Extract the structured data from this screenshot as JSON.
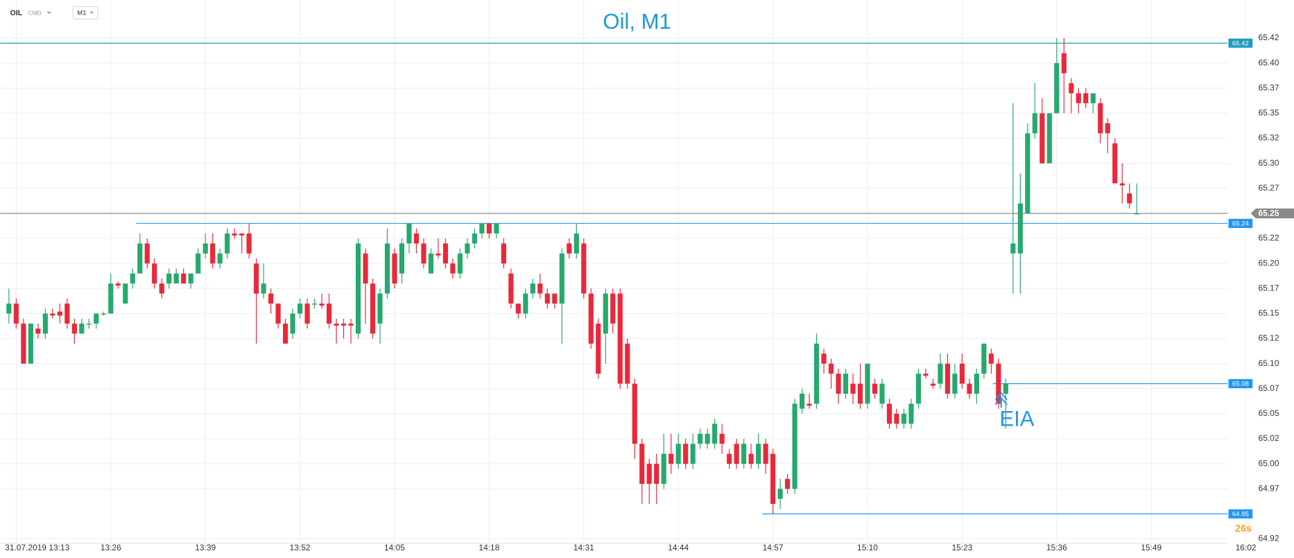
{
  "toolbar": {
    "symbol": "OIL",
    "market": "CMD",
    "interval": "M1"
  },
  "chart_data": {
    "type": "candlestick",
    "title": "Oil, M1",
    "annotation": "EIA",
    "countdown": "26s",
    "up_color": "#26a96c",
    "down_color": "#e8293b",
    "grid": true,
    "xlim": [
      "13:11",
      "16:02"
    ],
    "xticks": [
      "31.07.2019 13:13",
      "13:26",
      "13:39",
      "13:52",
      "14:05",
      "14:18",
      "14:31",
      "14:44",
      "14:57",
      "15:10",
      "15:23",
      "15:36",
      "15:49",
      "16:02"
    ],
    "ylim": [
      64.925,
      65.425
    ],
    "yticks": [
      {
        "value": 65.425,
        "label": "65.42"
      },
      {
        "value": 65.4,
        "label": "65.40"
      },
      {
        "value": 65.375,
        "label": "65.37"
      },
      {
        "value": 65.35,
        "label": "65.35"
      },
      {
        "value": 65.325,
        "label": "65.32"
      },
      {
        "value": 65.3,
        "label": "65.30"
      },
      {
        "value": 65.275,
        "label": "65.27"
      },
      {
        "value": 65.225,
        "label": "65.22"
      },
      {
        "value": 65.2,
        "label": "65.20"
      },
      {
        "value": 65.175,
        "label": "65.17"
      },
      {
        "value": 65.15,
        "label": "65.15"
      },
      {
        "value": 65.125,
        "label": "65.12"
      },
      {
        "value": 65.1,
        "label": "65.10"
      },
      {
        "value": 65.075,
        "label": "65.07"
      },
      {
        "value": 65.05,
        "label": "65.05"
      },
      {
        "value": 65.025,
        "label": "65.02"
      },
      {
        "value": 65,
        "label": "65.00"
      },
      {
        "value": 64.975,
        "label": "64.97"
      },
      {
        "value": 64.925,
        "label": "64.92"
      }
    ],
    "levels": [
      {
        "value": 65.42,
        "color": "#1f9bbd"
      },
      {
        "value": 65.24,
        "color": "#2196f3"
      },
      {
        "value": 65.08,
        "color": "#2196f3"
      },
      {
        "value": 64.95,
        "color": "#2196f3"
      }
    ],
    "current_price": {
      "value": 65.25,
      "color": "#8a8a8a"
    },
    "x": [
      "13:12",
      "13:13",
      "13:14",
      "13:15",
      "13:16",
      "13:17",
      "13:18",
      "13:19",
      "13:20",
      "13:21",
      "13:22",
      "13:23",
      "13:24",
      "13:25",
      "13:26",
      "13:27",
      "13:28",
      "13:29",
      "13:30",
      "13:31",
      "13:32",
      "13:33",
      "13:34",
      "13:35",
      "13:36",
      "13:37",
      "13:38",
      "13:39",
      "13:40",
      "13:41",
      "13:42",
      "13:43",
      "13:44",
      "13:45",
      "13:46",
      "13:47",
      "13:48",
      "13:49",
      "13:50",
      "13:51",
      "13:52",
      "13:53",
      "13:54",
      "13:55",
      "13:56",
      "13:57",
      "13:58",
      "13:59",
      "14:00",
      "14:01",
      "14:02",
      "14:03",
      "14:04",
      "14:05",
      "14:06",
      "14:07",
      "14:08",
      "14:09",
      "14:10",
      "14:11",
      "14:12",
      "14:13",
      "14:14",
      "14:15",
      "14:16",
      "14:17",
      "14:18",
      "14:19",
      "14:20",
      "14:21",
      "14:22",
      "14:23",
      "14:24",
      "14:25",
      "14:26",
      "14:27",
      "14:28",
      "14:29",
      "14:30",
      "14:31",
      "14:32",
      "14:33",
      "14:34",
      "14:35",
      "14:36",
      "14:37",
      "14:38",
      "14:39",
      "14:40",
      "14:41",
      "14:42",
      "14:43",
      "14:44",
      "14:45",
      "14:46",
      "14:47",
      "14:48",
      "14:49",
      "14:50",
      "14:51",
      "14:52",
      "14:53",
      "14:54",
      "14:55",
      "14:56",
      "14:57",
      "14:58",
      "14:59",
      "15:00",
      "15:01",
      "15:02",
      "15:03",
      "15:04",
      "15:05",
      "15:06",
      "15:07",
      "15:08",
      "15:09",
      "15:10",
      "15:11",
      "15:12",
      "15:13",
      "15:14",
      "15:15",
      "15:16",
      "15:17",
      "15:18",
      "15:19",
      "15:20",
      "15:21",
      "15:22",
      "15:23",
      "15:24",
      "15:25",
      "15:26",
      "15:27",
      "15:28",
      "15:29",
      "15:30",
      "15:31",
      "15:32",
      "15:33",
      "15:34",
      "15:35",
      "15:36",
      "15:37",
      "15:38",
      "15:39",
      "15:40",
      "15:41",
      "15:42",
      "15:43",
      "15:44",
      "15:45",
      "15:46",
      "15:47"
    ],
    "open": [
      65.15,
      65.16,
      65.14,
      65.1,
      65.135,
      65.13,
      65.15,
      65.152,
      65.16,
      65.14,
      65.13,
      65.14,
      65.14,
      65.15,
      65.15,
      65.18,
      65.16,
      65.18,
      65.19,
      65.22,
      65.2,
      65.18,
      65.18,
      65.18,
      65.19,
      65.18,
      65.19,
      65.21,
      65.22,
      65.2,
      65.21,
      65.23,
      65.23,
      65.23,
      65.2,
      65.17,
      65.17,
      65.16,
      65.14,
      65.13,
      65.15,
      65.16,
      65.16,
      65.16,
      65.16,
      65.14,
      65.14,
      65.14,
      65.13,
      65.21,
      65.18,
      65.14,
      65.17,
      65.21,
      65.19,
      65.22,
      65.23,
      65.22,
      65.19,
      65.21,
      65.22,
      65.2,
      65.19,
      65.21,
      65.22,
      65.23,
      65.24,
      65.23,
      65.22,
      65.19,
      65.16,
      65.15,
      65.17,
      65.18,
      65.17,
      65.17,
      65.16,
      65.22,
      65.21,
      65.22,
      65.17,
      65.14,
      65.13,
      65.17,
      65.17,
      65.12,
      65.08,
      65.02,
      65.0,
      65.0,
      64.98,
      65.01,
      65.0,
      65.02,
      65.0,
      65.02,
      65.02,
      65.02,
      65.03,
      65.01,
      65.02,
      65.0,
      65.01,
      65.0,
      65.02,
      65.01,
      64.965,
      64.985,
      64.975,
      65.055,
      65.06,
      65.06,
      65.11,
      65.1,
      65.09,
      65.07,
      65.08,
      65.08,
      65.06,
      65.08,
      65.06,
      65.06,
      65.05,
      65.04,
      65.04,
      65.06,
      65.09,
      65.08,
      65.08,
      65.1,
      65.07,
      65.1,
      65.08,
      65.07,
      65.09,
      65.11,
      65.1,
      65.07,
      65.21,
      65.21,
      65.25,
      65.33,
      65.35,
      65.3,
      65.35,
      65.41,
      65.38,
      65.37,
      65.37,
      65.36,
      65.36,
      65.34,
      65.32,
      65.28,
      65.27,
      65.25
    ],
    "high": [
      65.175,
      65.165,
      65.145,
      65.14,
      65.14,
      65.155,
      65.155,
      65.16,
      65.165,
      65.145,
      65.145,
      65.145,
      65.15,
      65.152,
      65.19,
      65.182,
      65.18,
      65.195,
      65.23,
      65.225,
      65.205,
      65.185,
      65.195,
      65.195,
      65.195,
      65.19,
      65.215,
      65.23,
      65.23,
      65.215,
      65.235,
      65.235,
      65.23,
      65.24,
      65.205,
      65.2,
      65.175,
      65.16,
      65.145,
      65.155,
      65.165,
      65.165,
      65.165,
      65.17,
      65.17,
      65.145,
      65.145,
      65.145,
      65.225,
      65.215,
      65.185,
      65.175,
      65.235,
      65.215,
      65.225,
      65.24,
      65.235,
      65.225,
      65.215,
      65.225,
      65.225,
      65.205,
      65.215,
      65.225,
      65.235,
      65.24,
      65.24,
      65.24,
      65.225,
      65.195,
      65.16,
      65.175,
      65.185,
      65.19,
      65.175,
      65.17,
      65.215,
      65.225,
      65.24,
      65.225,
      65.175,
      65.145,
      65.175,
      65.175,
      65.175,
      65.125,
      65.085,
      65.025,
      65.005,
      65.01,
      65.03,
      65.03,
      65.03,
      65.025,
      65.03,
      65.035,
      65.035,
      65.045,
      65.04,
      65.015,
      65.025,
      65.025,
      65.02,
      65.03,
      65.025,
      65.015,
      64.985,
      64.99,
      65.065,
      65.075,
      65.07,
      65.13,
      65.115,
      65.105,
      65.095,
      65.095,
      65.09,
      65.1,
      65.1,
      65.085,
      65.085,
      65.065,
      65.055,
      65.055,
      65.065,
      65.095,
      65.095,
      65.085,
      65.11,
      65.11,
      65.1,
      65.11,
      65.085,
      65.095,
      65.12,
      65.115,
      65.105,
      65.085,
      65.36,
      65.29,
      65.34,
      65.38,
      65.365,
      65.35,
      65.425,
      65.425,
      65.385,
      65.375,
      65.375,
      65.37,
      65.365,
      65.345,
      65.325,
      65.3,
      65.28,
      65.28
    ],
    "low": [
      65.14,
      65.135,
      65.1,
      65.1,
      65.125,
      65.125,
      65.145,
      65.14,
      65.135,
      65.12,
      65.13,
      65.135,
      65.135,
      65.148,
      65.15,
      65.175,
      65.16,
      65.175,
      65.19,
      65.195,
      65.175,
      65.165,
      65.175,
      65.18,
      65.18,
      65.175,
      65.19,
      65.205,
      65.195,
      65.195,
      65.205,
      65.225,
      65.21,
      65.205,
      65.12,
      65.165,
      65.15,
      65.135,
      65.12,
      65.125,
      65.145,
      65.135,
      65.155,
      65.155,
      65.135,
      65.12,
      65.125,
      65.12,
      65.125,
      65.14,
      65.125,
      65.12,
      65.165,
      65.175,
      65.18,
      65.21,
      65.21,
      65.195,
      65.19,
      65.205,
      65.195,
      65.185,
      65.185,
      65.205,
      65.215,
      65.225,
      65.225,
      65.225,
      65.195,
      65.155,
      65.145,
      65.145,
      65.165,
      65.165,
      65.155,
      65.155,
      65.12,
      65.205,
      65.205,
      65.165,
      65.115,
      65.085,
      65.1,
      65.13,
      65.075,
      65.075,
      65.005,
      64.96,
      64.96,
      64.96,
      64.975,
      64.99,
      64.995,
      64.995,
      64.995,
      65.015,
      65.015,
      65.015,
      65.01,
      64.995,
      64.995,
      64.995,
      64.995,
      64.995,
      64.99,
      64.95,
      64.955,
      64.97,
      64.97,
      65.05,
      65.055,
      65.055,
      65.09,
      65.075,
      65.06,
      65.065,
      65.06,
      65.055,
      65.055,
      65.065,
      65.055,
      65.035,
      65.035,
      65.035,
      65.035,
      65.055,
      65.085,
      65.075,
      65.075,
      65.065,
      65.065,
      65.075,
      65.065,
      65.06,
      65.085,
      65.09,
      65.055,
      65.035,
      65.17,
      65.17,
      65.25,
      65.325,
      65.3,
      65.3,
      65.35,
      65.35,
      65.35,
      65.35,
      65.355,
      65.35,
      65.32,
      65.31,
      65.28,
      65.26,
      65.255,
      65.25
    ],
    "close": [
      65.16,
      65.14,
      65.1,
      65.14,
      65.13,
      65.15,
      65.148,
      65.148,
      65.14,
      65.13,
      65.14,
      65.14,
      65.15,
      65.15,
      65.18,
      65.178,
      65.18,
      65.19,
      65.22,
      65.2,
      65.18,
      65.17,
      65.19,
      65.19,
      65.18,
      65.19,
      65.21,
      65.22,
      65.2,
      65.21,
      65.23,
      65.228,
      65.228,
      65.21,
      65.17,
      65.18,
      65.16,
      65.14,
      65.12,
      65.15,
      65.16,
      65.14,
      65.16,
      65.158,
      65.14,
      65.138,
      65.138,
      65.138,
      65.22,
      65.18,
      65.13,
      65.17,
      65.22,
      65.18,
      65.22,
      65.24,
      65.22,
      65.2,
      65.21,
      65.208,
      65.2,
      65.19,
      65.21,
      65.22,
      65.23,
      65.24,
      65.23,
      65.24,
      65.2,
      65.16,
      65.15,
      65.17,
      65.18,
      65.17,
      65.16,
      65.16,
      65.21,
      65.21,
      65.23,
      65.17,
      65.12,
      65.09,
      65.17,
      65.14,
      65.08,
      65.08,
      65.02,
      64.98,
      64.98,
      64.98,
      65.01,
      65.0,
      65.02,
      65.0,
      65.02,
      65.03,
      65.03,
      65.04,
      65.02,
      65.0,
      65.0,
      65.02,
      65.0,
      65.02,
      65.0,
      64.96,
      64.975,
      64.975,
      65.06,
      65.07,
      65.058,
      65.12,
      65.1,
      65.09,
      65.07,
      65.09,
      65.07,
      65.06,
      65.1,
      65.07,
      65.08,
      65.04,
      65.04,
      65.05,
      65.06,
      65.09,
      65.088,
      65.078,
      65.1,
      65.07,
      65.09,
      65.08,
      65.07,
      65.09,
      65.12,
      65.1,
      65.06,
      65.08,
      65.22,
      65.26,
      65.33,
      65.35,
      65.3,
      65.35,
      65.4,
      65.39,
      65.37,
      65.36,
      65.36,
      65.37,
      65.33,
      65.33,
      65.28,
      65.278,
      65.26,
      65.25
    ]
  }
}
